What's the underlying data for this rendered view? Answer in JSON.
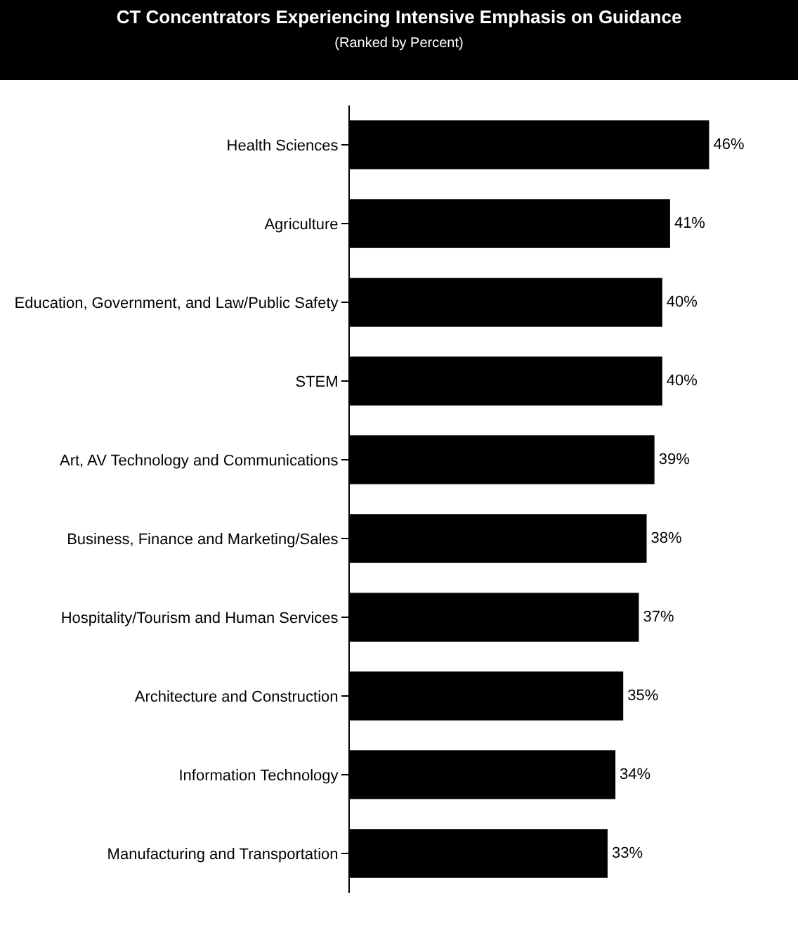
{
  "chart_data": {
    "type": "bar",
    "orientation": "horizontal",
    "title": "CT Concentrators Experiencing Intensive Emphasis on Guidance",
    "subtitle": "(Ranked by Percent)",
    "categories": [
      "Health Sciences",
      "Agriculture",
      "Education, Government, and Law/Public Safety",
      "STEM",
      "Art, AV Technology and Communications",
      "Business, Finance and Marketing/Sales",
      "Hospitality/Tourism and Human Services",
      "Architecture and Construction",
      "Information Technology",
      "Manufacturing and Transportation"
    ],
    "values": [
      46,
      41,
      40,
      40,
      39,
      38,
      37,
      35,
      34,
      33
    ],
    "value_labels": [
      "46%",
      "41%",
      "40%",
      "40%",
      "39%",
      "38%",
      "37%",
      "35%",
      "34%",
      "33%"
    ],
    "color": "#000000"
  }
}
